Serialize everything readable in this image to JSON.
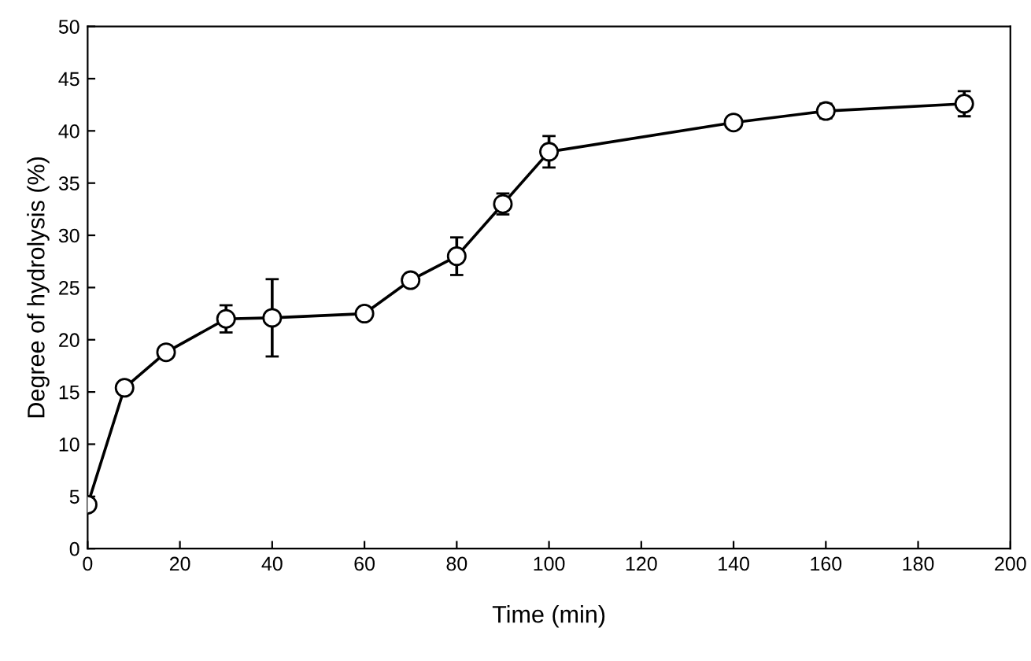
{
  "chart_data": {
    "type": "line",
    "xlabel": "Time (min)",
    "ylabel": "Degree of hydrolysis (%)",
    "x": [
      0,
      8,
      17,
      30,
      40,
      60,
      70,
      80,
      90,
      100,
      140,
      160,
      190
    ],
    "series": [
      {
        "color": "#000000",
        "values": [
          4.2,
          15.4,
          18.8,
          22,
          22.1,
          22.5,
          25.7,
          28,
          33,
          38,
          40.8,
          41.9,
          42.6
        ],
        "errors": [
          null,
          null,
          null,
          1.3,
          3.7,
          null,
          null,
          1.8,
          1,
          1.5,
          null,
          0.7,
          1.2
        ]
      }
    ],
    "xlim": [
      0,
      200
    ],
    "xticks": [
      0,
      20,
      40,
      60,
      80,
      100,
      120,
      140,
      160,
      180,
      200
    ],
    "ylim": [
      0,
      50
    ],
    "yticks": [
      0,
      5,
      10,
      15,
      20,
      25,
      30,
      35,
      40,
      45,
      50
    ],
    "marker": "circle",
    "line_style": "solid",
    "grid": false,
    "legend": false
  }
}
